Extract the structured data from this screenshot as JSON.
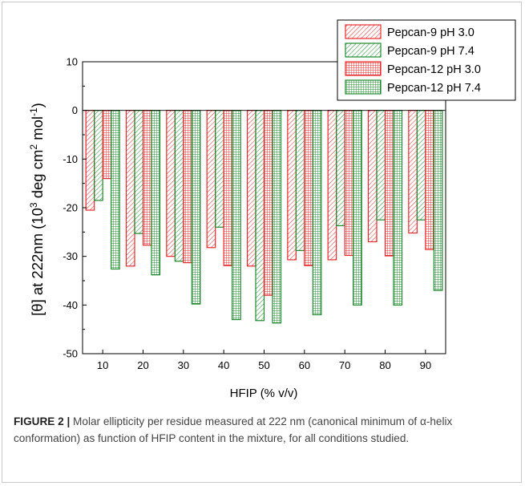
{
  "colors": {
    "red": "#e8282b",
    "green": "#1f8a2e"
  },
  "chart_data": {
    "type": "bar",
    "xlabel": "HFIP (% v/v)",
    "ylabel_prefix": "[θ] at 222nm (10",
    "ylabel_sup1": "3",
    "ylabel_mid": " deg cm",
    "ylabel_sup2": "2",
    "ylabel_mid2": " mol",
    "ylabel_sup3": "-1",
    "ylabel_suffix": ")",
    "ylim": [
      -50,
      10
    ],
    "yticks": [
      10,
      0,
      -10,
      -20,
      -30,
      -40,
      -50
    ],
    "legend_position": "top-right",
    "categories": [
      "10",
      "20",
      "30",
      "40",
      "50",
      "60",
      "70",
      "80",
      "90"
    ],
    "series": [
      {
        "name": "Pepcan-9 pH 3.0",
        "color": "#e8282b",
        "pattern": "diagonal",
        "values": [
          -20.5,
          -32.0,
          -30.0,
          -28.2,
          -32.0,
          -30.7,
          -30.7,
          -27.0,
          -25.2
        ]
      },
      {
        "name": "Pepcan-9 pH 7.4",
        "color": "#1f8a2e",
        "pattern": "diagonal",
        "values": [
          -18.5,
          -25.3,
          -31.0,
          -24.0,
          -43.2,
          -28.8,
          -23.7,
          -22.5,
          -22.5
        ]
      },
      {
        "name": "Pepcan-12 pH 3.0",
        "color": "#e8282b",
        "pattern": "grid",
        "values": [
          -14.0,
          -27.7,
          -31.3,
          -31.9,
          -38.0,
          -31.9,
          -29.8,
          -29.9,
          -28.6
        ]
      },
      {
        "name": "Pepcan-12 pH 7.4",
        "color": "#1f8a2e",
        "pattern": "grid",
        "values": [
          -32.6,
          -33.8,
          -39.8,
          -43.0,
          -43.7,
          -42.0,
          -40.0,
          -40.0,
          -37.0
        ]
      }
    ]
  },
  "caption": {
    "label": "FIGURE 2 |",
    "text": " Molar ellipticity per residue measured at 222 nm (canonical minimum of α-helix conformation) as function of HFIP content in the mixture, for all conditions studied."
  }
}
